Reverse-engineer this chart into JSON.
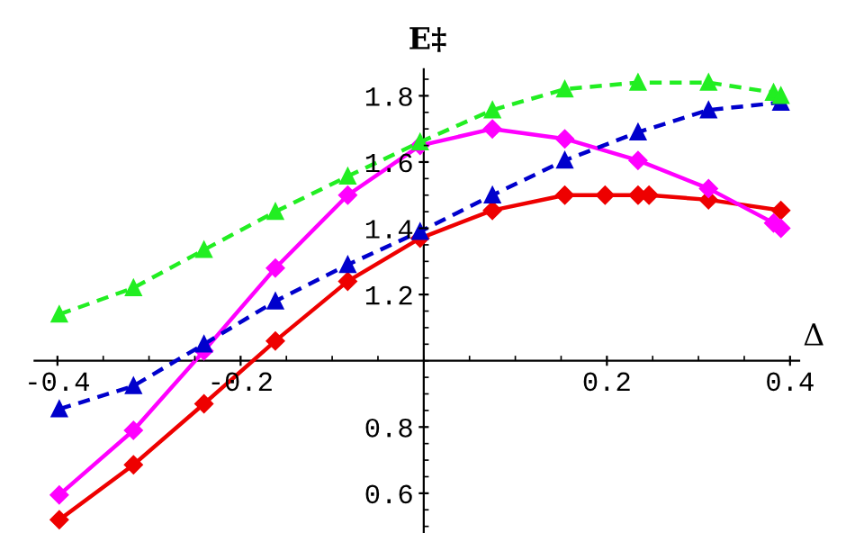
{
  "chart_data": {
    "type": "line",
    "xlabel": "Δ",
    "ylabel": "E‡",
    "xlim": [
      -0.425,
      0.41
    ],
    "ylim": [
      0.48,
      1.88
    ],
    "xticks": [
      -0.4,
      -0.2,
      0.2,
      0.4
    ],
    "yticks": [
      0.6,
      0.8,
      1.2,
      1.4,
      1.6,
      1.8
    ],
    "grid": false,
    "legend": false,
    "series": [
      {
        "color": "#22ee22",
        "marker": "triangle",
        "line_style": "dashed",
        "x": [
          -0.398,
          -0.317,
          -0.24,
          -0.162,
          -0.083,
          -0.004,
          0.075,
          0.154,
          0.234,
          0.311,
          0.382,
          0.39
        ],
        "values": [
          1.14,
          1.22,
          1.335,
          1.45,
          1.557,
          1.66,
          1.757,
          1.82,
          1.84,
          1.84,
          1.81,
          1.8
        ]
      },
      {
        "color": "#0000cc",
        "marker": "triangle",
        "line_style": "dashed",
        "x": [
          -0.398,
          -0.317,
          -0.24,
          -0.162,
          -0.083,
          -0.004,
          0.075,
          0.154,
          0.234,
          0.311,
          0.39
        ],
        "values": [
          0.854,
          0.924,
          1.05,
          1.18,
          1.29,
          1.39,
          1.5,
          1.605,
          1.69,
          1.757,
          1.78
        ]
      },
      {
        "color": "#ff00ff",
        "marker": "diamond",
        "line_style": "solid",
        "x": [
          -0.398,
          -0.317,
          -0.24,
          -0.162,
          -0.083,
          -0.004,
          0.075,
          0.154,
          0.234,
          0.311,
          0.382,
          0.39
        ],
        "values": [
          0.595,
          0.79,
          1.03,
          1.28,
          1.5,
          1.65,
          1.7,
          1.67,
          1.605,
          1.52,
          1.416,
          1.4
        ]
      },
      {
        "color": "#ee0000",
        "marker": "diamond",
        "line_style": "solid",
        "x": [
          -0.398,
          -0.317,
          -0.24,
          -0.162,
          -0.083,
          -0.004,
          0.075,
          0.154,
          0.198,
          0.234,
          0.246,
          0.311,
          0.39
        ],
        "values": [
          0.52,
          0.686,
          0.87,
          1.06,
          1.24,
          1.37,
          1.454,
          1.5,
          1.5,
          1.5,
          1.5,
          1.486,
          1.454
        ]
      }
    ]
  }
}
